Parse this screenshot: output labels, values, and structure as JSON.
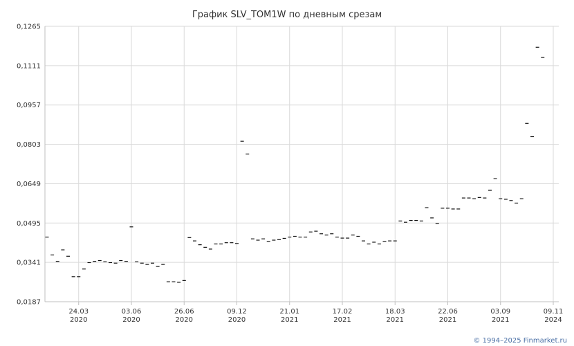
{
  "chart_data": {
    "type": "scatter",
    "title": "График SLV_TOM1W по дневным срезам",
    "xlabel": "",
    "ylabel": "",
    "ylim": [
      0.0187,
      0.1265
    ],
    "yticks": [
      "0,1265",
      "0,1111",
      "0,0957",
      "0,0803",
      "0,0649",
      "0,0495",
      "0,0341",
      "0,0187"
    ],
    "ytick_values": [
      0.1265,
      0.1111,
      0.0957,
      0.0803,
      0.0649,
      0.0495,
      0.0341,
      0.0187
    ],
    "xlim": [
      0,
      96
    ],
    "xticks": [
      {
        "pos": 6,
        "day": "24.03",
        "year": "2020"
      },
      {
        "pos": 16,
        "day": "03.06",
        "year": "2020"
      },
      {
        "pos": 26,
        "day": "26.06",
        "year": "2020"
      },
      {
        "pos": 36,
        "day": "09.12",
        "year": "2020"
      },
      {
        "pos": 46,
        "day": "21.01",
        "year": "2021"
      },
      {
        "pos": 56,
        "day": "17.02",
        "year": "2021"
      },
      {
        "pos": 66,
        "day": "18.03",
        "year": "2021"
      },
      {
        "pos": 76,
        "day": "22.06",
        "year": "2021"
      },
      {
        "pos": 86,
        "day": "03.09",
        "year": "2021"
      },
      {
        "pos": 96,
        "day": "09.11",
        "year": "2024"
      }
    ],
    "grid": true,
    "legend": "none",
    "marker_color": "#111111",
    "points": [
      [
        0.0,
        0.044
      ],
      [
        1.0,
        0.037
      ],
      [
        2.0,
        0.0345
      ],
      [
        3.0,
        0.039
      ],
      [
        4.0,
        0.0365
      ],
      [
        5.0,
        0.0285
      ],
      [
        6.0,
        0.0285
      ],
      [
        7.0,
        0.0315
      ],
      [
        8.0,
        0.034
      ],
      [
        9.0,
        0.0345
      ],
      [
        10.0,
        0.0348
      ],
      [
        11.0,
        0.0343
      ],
      [
        12.0,
        0.034
      ],
      [
        13.0,
        0.0338
      ],
      [
        14.0,
        0.0348
      ],
      [
        15.0,
        0.0345
      ],
      [
        16.0,
        0.048
      ],
      [
        17.0,
        0.0343
      ],
      [
        18.0,
        0.0338
      ],
      [
        19.0,
        0.0333
      ],
      [
        20.0,
        0.0338
      ],
      [
        21.0,
        0.0325
      ],
      [
        22.0,
        0.0333
      ],
      [
        23.0,
        0.0265
      ],
      [
        24.0,
        0.0265
      ],
      [
        25.0,
        0.0263
      ],
      [
        26.0,
        0.027
      ],
      [
        27.0,
        0.0438
      ],
      [
        28.0,
        0.0425
      ],
      [
        29.0,
        0.041
      ],
      [
        30.0,
        0.04
      ],
      [
        31.0,
        0.0393
      ],
      [
        32.0,
        0.0413
      ],
      [
        33.0,
        0.0413
      ],
      [
        34.0,
        0.0418
      ],
      [
        35.0,
        0.0418
      ],
      [
        36.0,
        0.0415
      ],
      [
        37.0,
        0.0815
      ],
      [
        38.0,
        0.0765
      ],
      [
        39.0,
        0.0433
      ],
      [
        40.0,
        0.0428
      ],
      [
        41.0,
        0.0433
      ],
      [
        42.0,
        0.0423
      ],
      [
        43.0,
        0.0428
      ],
      [
        44.0,
        0.043
      ],
      [
        45.0,
        0.0435
      ],
      [
        46.0,
        0.044
      ],
      [
        47.0,
        0.0443
      ],
      [
        48.0,
        0.044
      ],
      [
        49.0,
        0.044
      ],
      [
        50.0,
        0.046
      ],
      [
        51.0,
        0.0463
      ],
      [
        52.0,
        0.0453
      ],
      [
        53.0,
        0.0448
      ],
      [
        54.0,
        0.0453
      ],
      [
        55.0,
        0.044
      ],
      [
        56.0,
        0.0436
      ],
      [
        57.0,
        0.0436
      ],
      [
        58.0,
        0.0448
      ],
      [
        59.0,
        0.0443
      ],
      [
        60.0,
        0.0425
      ],
      [
        61.0,
        0.0413
      ],
      [
        62.0,
        0.042
      ],
      [
        63.0,
        0.0413
      ],
      [
        64.0,
        0.0423
      ],
      [
        65.0,
        0.0425
      ],
      [
        66.0,
        0.0425
      ],
      [
        67.0,
        0.0503
      ],
      [
        68.0,
        0.0498
      ],
      [
        69.0,
        0.0505
      ],
      [
        70.0,
        0.0505
      ],
      [
        71.0,
        0.0503
      ],
      [
        72.0,
        0.0555
      ],
      [
        73.0,
        0.0515
      ],
      [
        74.0,
        0.0493
      ],
      [
        75.0,
        0.0553
      ],
      [
        76.0,
        0.0553
      ],
      [
        77.0,
        0.055
      ],
      [
        78.0,
        0.055
      ],
      [
        79.0,
        0.0593
      ],
      [
        80.0,
        0.0593
      ],
      [
        81.0,
        0.059
      ],
      [
        82.0,
        0.0595
      ],
      [
        83.0,
        0.0593
      ],
      [
        84.0,
        0.0623
      ],
      [
        85.0,
        0.0668
      ],
      [
        86.0,
        0.059
      ],
      [
        87.0,
        0.0588
      ],
      [
        88.0,
        0.0583
      ],
      [
        89.0,
        0.0573
      ],
      [
        90.0,
        0.059
      ],
      [
        91.0,
        0.0885
      ],
      [
        92.0,
        0.0833
      ],
      [
        93.0,
        0.1183
      ],
      [
        94.0,
        0.1143
      ]
    ]
  },
  "footer": {
    "credit": "© 1994–2025 Finmarket.ru"
  }
}
